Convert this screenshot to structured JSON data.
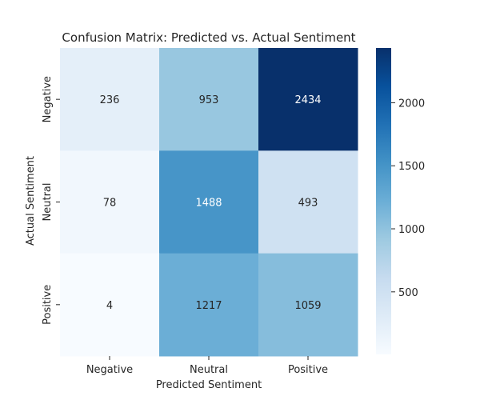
{
  "chart_data": {
    "type": "heatmap",
    "title": "Confusion Matrix: Predicted vs. Actual Sentiment",
    "xlabel": "Predicted Sentiment",
    "ylabel": "Actual Sentiment",
    "x_categories": [
      "Negative",
      "Neutral",
      "Positive"
    ],
    "y_categories": [
      "Negative",
      "Neutral",
      "Positive"
    ],
    "values": [
      [
        236,
        953,
        2434
      ],
      [
        78,
        1488,
        493
      ],
      [
        4,
        1217,
        1059
      ]
    ],
    "colormap": "Blues",
    "color_range": [
      4,
      2434
    ],
    "colorbar_ticks": [
      500,
      1000,
      1500,
      2000
    ]
  }
}
